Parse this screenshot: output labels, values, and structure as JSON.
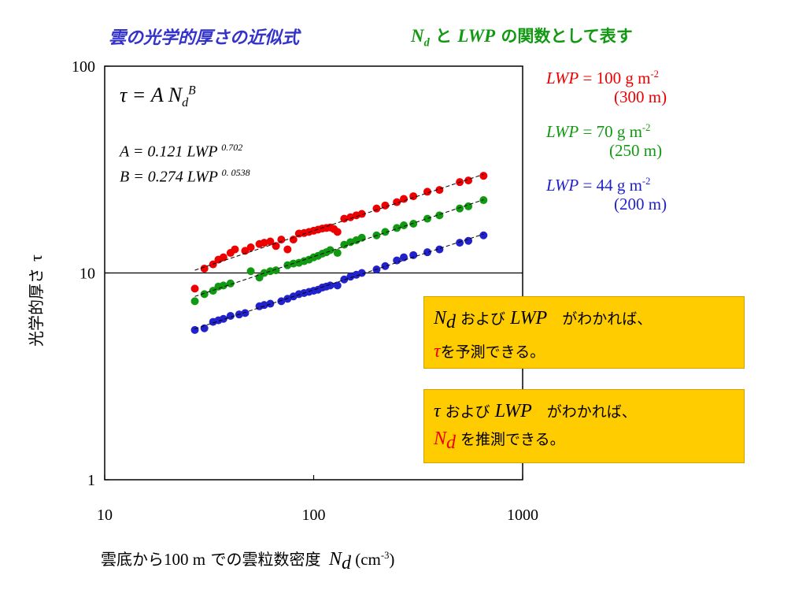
{
  "header": {
    "left_title": "雲の光学的厚さの近似式",
    "right_title": {
      "nd": "N",
      "nd_sub": "d",
      "mid": " と ",
      "lwp": "LWP",
      "tail": " の関数として表す"
    }
  },
  "equations": {
    "main": {
      "lhs": "τ = A N",
      "sub": "d",
      "exp": "B"
    },
    "a": {
      "text": "A = 0.121 LWP ",
      "exp": "0.702"
    },
    "b": {
      "text": "B = 0.274 LWP ",
      "exp": "0. 0538"
    }
  },
  "legend": [
    {
      "label": "LWP",
      "value": " = 100 g m",
      "exp": "-2",
      "paren": "(300 m)",
      "color": "#ee0000"
    },
    {
      "label": "LWP",
      "value": " =  70 g m",
      "exp": "-2",
      "paren": "(250 m)",
      "color": "#119911"
    },
    {
      "label": "LWP",
      "value": " =  44 g m",
      "exp": "-2",
      "paren": "(200 m)",
      "color": "#2222cc"
    }
  ],
  "notes": [
    {
      "line1_var": "N",
      "line1_sub": "d",
      "line1_mid": " および ",
      "line1_lwp": "LWP",
      "line1_tail": "　がわかれば、",
      "line2_var": "τ",
      "line2_tail": "を予測できる。",
      "highlight": "#ee0000"
    },
    {
      "line1_var": "τ",
      "line1_mid": " および ",
      "line1_lwp": "LWP",
      "line1_tail": "　がわかれば、",
      "line2_var": "N",
      "line2_sub": "d",
      "line2_tail": " を推測できる。",
      "highlight": "#ee0000"
    }
  ],
  "axes": {
    "x_title_jp": "雲底から",
    "x_title_num": "100 m",
    "x_title_jp2": " での雲粒数密度",
    "x_var": "N",
    "x_sub": "d",
    "x_unit": " (cm",
    "x_unit_exp": "-3",
    "x_unit_close": ")",
    "y_title_jp": "光学的厚さ",
    "y_title_var": "τ"
  },
  "chart_data": {
    "type": "scatter",
    "xscale": "log",
    "yscale": "log",
    "xlim": [
      10,
      1000
    ],
    "ylim": [
      1,
      100
    ],
    "x_ticks": [
      "10",
      "100",
      "1000"
    ],
    "y_ticks": [
      "1",
      "10",
      "100"
    ],
    "grid": "horizontal line at y = 10",
    "series": [
      {
        "color": "#ee0000",
        "points": [
          [
            27,
            8.4
          ],
          [
            30,
            10.5
          ],
          [
            33,
            11
          ],
          [
            35,
            11.6
          ],
          [
            37,
            11.9
          ],
          [
            40,
            12.5
          ],
          [
            42,
            13
          ],
          [
            47,
            12.8
          ],
          [
            50,
            13.3
          ],
          [
            55,
            13.8
          ],
          [
            58,
            14
          ],
          [
            62,
            14.2
          ],
          [
            66,
            13.5
          ],
          [
            70,
            14.5
          ],
          [
            75,
            13
          ],
          [
            80,
            14.5
          ],
          [
            85,
            15.5
          ],
          [
            90,
            15.6
          ],
          [
            95,
            15.8
          ],
          [
            100,
            16
          ],
          [
            105,
            16.2
          ],
          [
            110,
            16.4
          ],
          [
            115,
            16.5
          ],
          [
            120,
            16.6
          ],
          [
            125,
            16.3
          ],
          [
            130,
            15.8
          ],
          [
            140,
            18.3
          ],
          [
            150,
            18.6
          ],
          [
            160,
            19
          ],
          [
            170,
            19.3
          ],
          [
            200,
            20.5
          ],
          [
            220,
            21.2
          ],
          [
            250,
            22
          ],
          [
            270,
            22.8
          ],
          [
            300,
            23.5
          ],
          [
            350,
            24.7
          ],
          [
            400,
            25.2
          ],
          [
            500,
            27.5
          ],
          [
            550,
            28
          ],
          [
            650,
            29.5
          ]
        ]
      },
      {
        "color": "#119911",
        "points": [
          [
            27,
            7.3
          ],
          [
            30,
            7.9
          ],
          [
            33,
            8.2
          ],
          [
            35,
            8.6
          ],
          [
            37,
            8.7
          ],
          [
            40,
            8.9
          ],
          [
            50,
            10.2
          ],
          [
            55,
            9.5
          ],
          [
            58,
            10
          ],
          [
            62,
            10.2
          ],
          [
            66,
            10.3
          ],
          [
            75,
            10.9
          ],
          [
            80,
            11.1
          ],
          [
            85,
            11.2
          ],
          [
            90,
            11.4
          ],
          [
            95,
            11.6
          ],
          [
            100,
            11.9
          ],
          [
            105,
            12.1
          ],
          [
            110,
            12.4
          ],
          [
            115,
            12.6
          ],
          [
            120,
            12.9
          ],
          [
            130,
            12.5
          ],
          [
            140,
            13.7
          ],
          [
            150,
            14.1
          ],
          [
            160,
            14.4
          ],
          [
            170,
            14.8
          ],
          [
            200,
            15.2
          ],
          [
            220,
            15.8
          ],
          [
            250,
            16.5
          ],
          [
            270,
            17
          ],
          [
            300,
            17.3
          ],
          [
            350,
            18.3
          ],
          [
            400,
            19
          ],
          [
            500,
            20.5
          ],
          [
            550,
            21
          ],
          [
            650,
            22.5
          ]
        ]
      },
      {
        "color": "#2222cc",
        "points": [
          [
            27,
            5.3
          ],
          [
            30,
            5.4
          ],
          [
            33,
            5.8
          ],
          [
            35,
            5.9
          ],
          [
            37,
            6
          ],
          [
            40,
            6.2
          ],
          [
            44,
            6.3
          ],
          [
            47,
            6.4
          ],
          [
            55,
            6.9
          ],
          [
            58,
            7
          ],
          [
            62,
            7.1
          ],
          [
            70,
            7.3
          ],
          [
            75,
            7.5
          ],
          [
            80,
            7.7
          ],
          [
            85,
            7.9
          ],
          [
            90,
            8
          ],
          [
            95,
            8.1
          ],
          [
            100,
            8.2
          ],
          [
            105,
            8.3
          ],
          [
            110,
            8.5
          ],
          [
            115,
            8.6
          ],
          [
            120,
            8.7
          ],
          [
            130,
            8.7
          ],
          [
            140,
            9.3
          ],
          [
            150,
            9.6
          ],
          [
            160,
            9.8
          ],
          [
            170,
            10
          ],
          [
            200,
            10.4
          ],
          [
            220,
            10.8
          ],
          [
            250,
            11.5
          ],
          [
            270,
            11.9
          ],
          [
            300,
            12.2
          ],
          [
            350,
            12.6
          ],
          [
            400,
            13
          ],
          [
            500,
            14
          ],
          [
            550,
            14.3
          ],
          [
            650,
            15.2
          ]
        ]
      }
    ]
  }
}
